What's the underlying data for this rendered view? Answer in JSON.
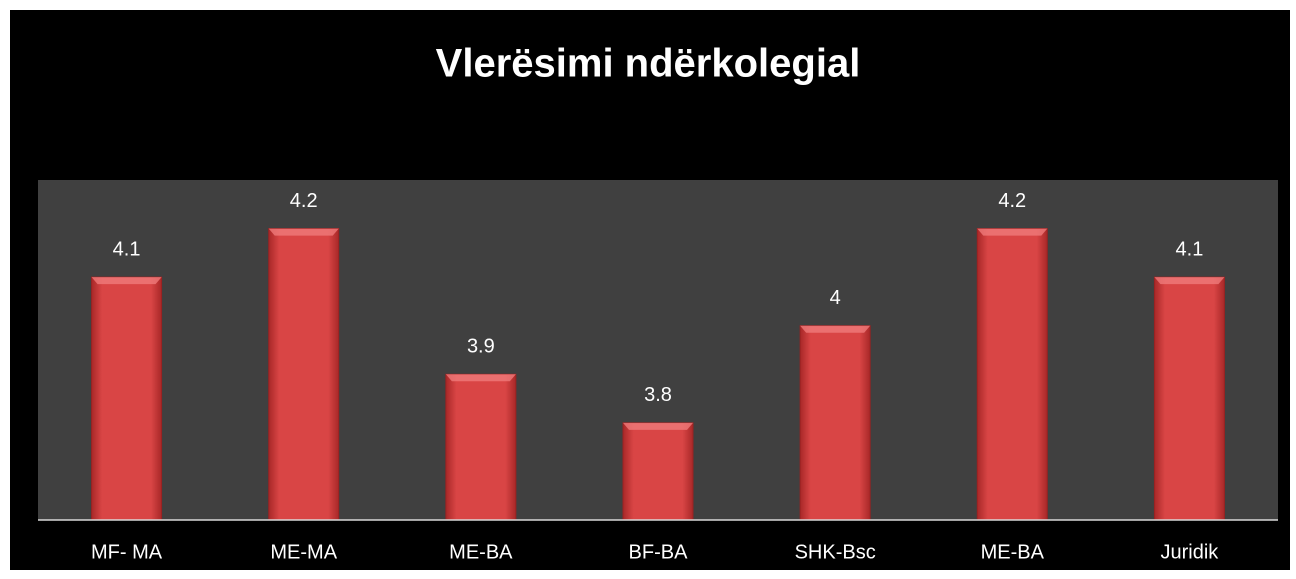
{
  "chart_data": {
    "type": "bar",
    "title": "Vlerësimi ndërkolegial",
    "categories": [
      "MF- MA",
      "ME-MA",
      "ME-BA",
      "BF-BA",
      "SHK-Bsc",
      "ME-BA",
      "Juridik"
    ],
    "values": [
      4.1,
      4.2,
      3.9,
      3.8,
      4,
      4.2,
      4.1
    ],
    "color": "#d63c3c",
    "ylim": [
      3.6,
      4.3
    ]
  }
}
